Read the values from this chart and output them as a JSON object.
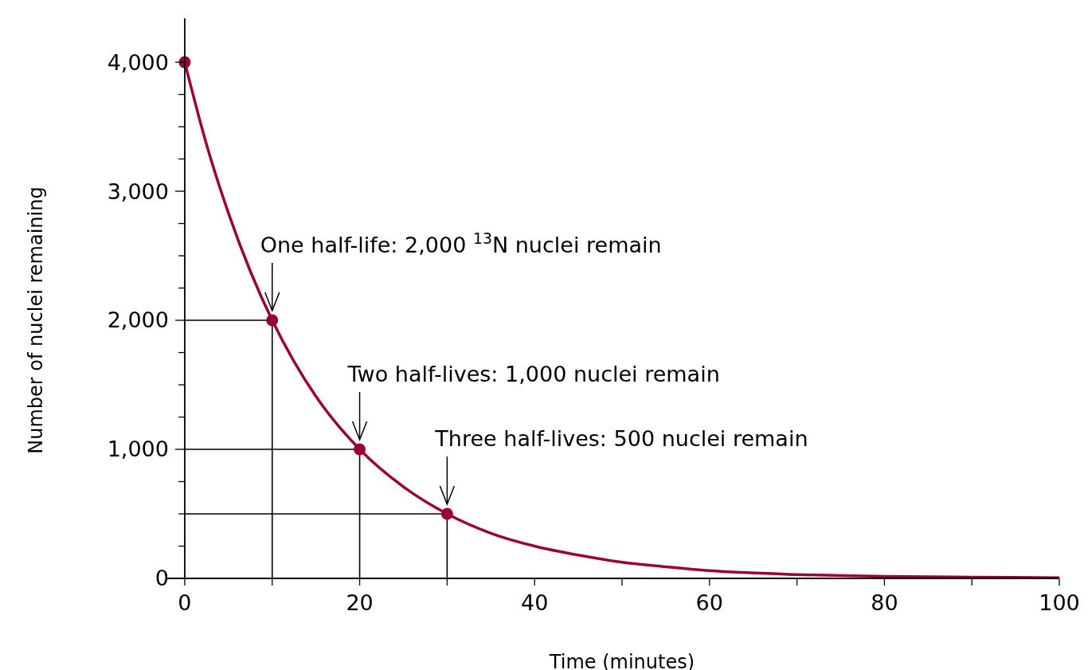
{
  "chart_data": {
    "type": "line",
    "xlabel": "Time (minutes)",
    "ylabel": "Number of nuclei remaining",
    "xlim": [
      -2,
      100
    ],
    "ylim": [
      0,
      4340
    ],
    "xticks": [
      0,
      {
        "value": 10,
        "label": null
      },
      20,
      {
        "value": 30,
        "label": null
      },
      40,
      {
        "value": 50,
        "label": null
      },
      60,
      {
        "value": 70,
        "label": null
      },
      80,
      {
        "value": 90,
        "label": null
      },
      100
    ],
    "yticks": [
      0,
      {
        "value": 250,
        "label": null
      },
      {
        "value": 500,
        "label": null
      },
      {
        "value": 750,
        "label": null
      },
      {
        "value": 1000,
        "label": "1,000"
      },
      {
        "value": 1250,
        "label": null
      },
      {
        "value": 1500,
        "label": null
      },
      {
        "value": 1750,
        "label": null
      },
      {
        "value": 2000,
        "label": "2,000"
      },
      {
        "value": 2250,
        "label": null
      },
      {
        "value": 2500,
        "label": null
      },
      {
        "value": 2750,
        "label": null
      },
      {
        "value": 3000,
        "label": "3,000"
      },
      {
        "value": 3250,
        "label": null
      },
      {
        "value": 3500,
        "label": null
      },
      {
        "value": 3750,
        "label": null
      },
      {
        "value": 4000,
        "label": "4,000"
      }
    ],
    "series": [
      {
        "color": "#000000",
        "x": [
          0,
          10,
          10
        ],
        "values": [
          2000,
          2000,
          0
        ],
        "marker": "none"
      },
      {
        "color": "#000000",
        "x": [
          0,
          20,
          20
        ],
        "values": [
          1000,
          1000,
          0
        ],
        "marker": "none"
      },
      {
        "color": "#000000",
        "x": [
          0,
          30,
          30
        ],
        "values": [
          500,
          500,
          0
        ],
        "marker": "none"
      },
      {
        "color": "#990033",
        "x": [
          0,
          2.5,
          5,
          7.5,
          10,
          12.5,
          15,
          20,
          25,
          30,
          35,
          40,
          45,
          50,
          55,
          60,
          70,
          80,
          90,
          100
        ],
        "values": [
          4000,
          3360,
          2830,
          2380,
          2000,
          1680,
          1410,
          1000,
          710,
          500,
          350,
          250,
          180,
          125,
          90,
          60,
          30,
          15,
          10,
          5
        ],
        "marker": "none"
      },
      {
        "type": "scatter",
        "color": "#990033",
        "x": [
          0,
          10,
          20,
          30
        ],
        "values": [
          4000,
          2000,
          1000,
          500
        ],
        "marker": "circle"
      }
    ],
    "annotations": [
      {
        "text": "One half-life:  2,000 $^{13}$N nuclei remain",
        "x": 10,
        "y": 2000
      },
      {
        "text": "Two half-lives:  1,000 nuclei remain",
        "x": 20,
        "y": 1000
      },
      {
        "text": "Three half-lives:  500 nuclei remain",
        "x": 30,
        "y": 500
      }
    ]
  }
}
